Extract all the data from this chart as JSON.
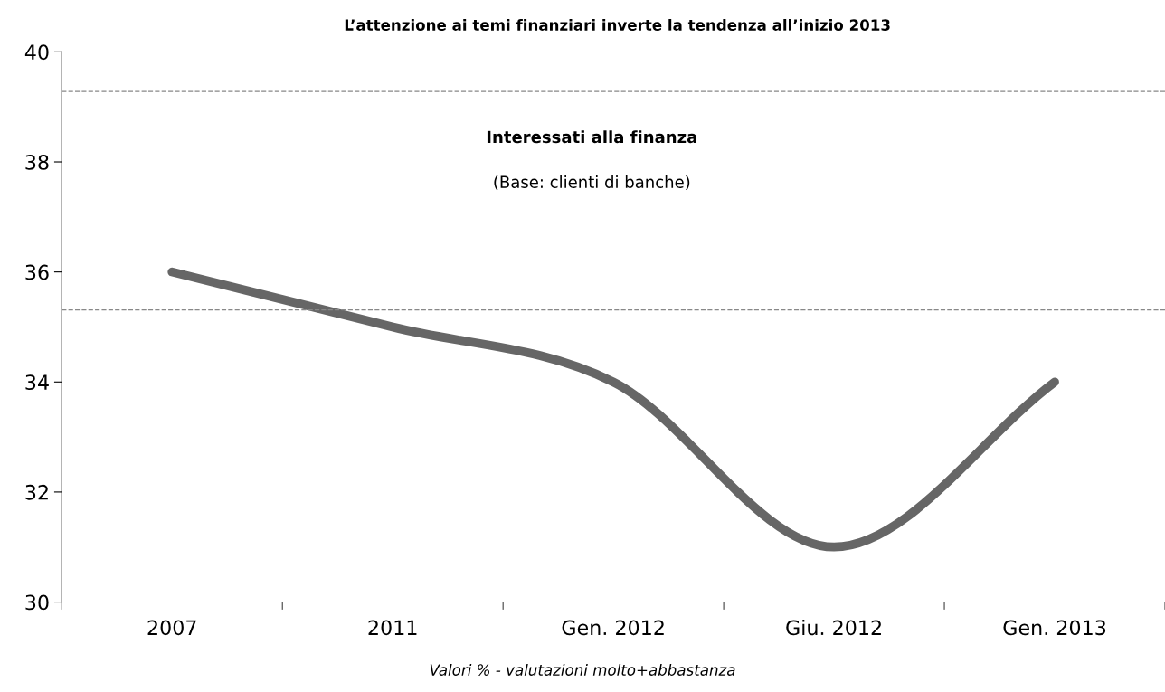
{
  "chart_data": {
    "type": "line",
    "title": "L’attenzione ai temi finanziari inverte la tendenza all’inizio 2013",
    "categories": [
      "2007",
      "2011",
      "Gen. 2012",
      "Giu. 2012",
      "Gen. 2013"
    ],
    "series": [
      {
        "color": "#666666",
        "values": [
          36,
          35,
          34,
          31,
          34
        ]
      }
    ],
    "ylim": [
      30,
      40
    ],
    "yticks": [
      30,
      32,
      34,
      36,
      38,
      40
    ],
    "grid": false,
    "legend": false,
    "marker": "none",
    "line_style": "solid",
    "ref_lines": [
      {
        "axis": "y",
        "value": 39.28,
        "color": "#888888",
        "line_style": "dashed"
      },
      {
        "axis": "y",
        "value": 35.31,
        "color": "#888888",
        "line_style": "dashed"
      }
    ],
    "annotations": [
      "Interessati alla finanza",
      "(Base: clienti di banche)",
      "Valori % - valutazioni molto+abbastanza"
    ]
  }
}
